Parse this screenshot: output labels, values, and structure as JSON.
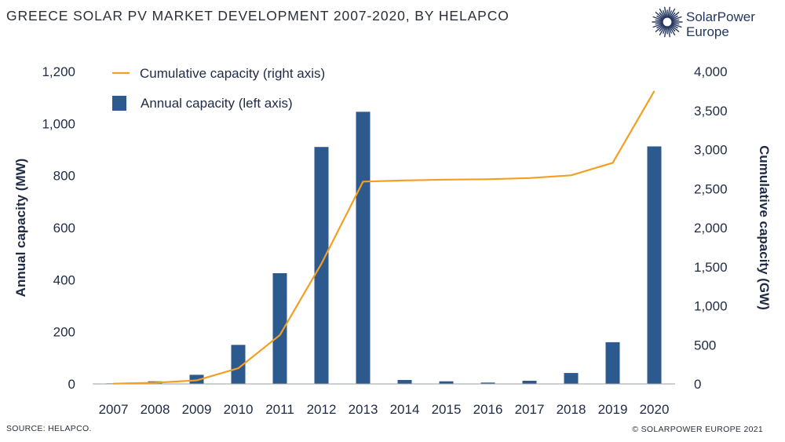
{
  "header": {
    "title": "GREECE SOLAR PV MARKET DEVELOPMENT 2007-2020, BY HELAPCO",
    "logo_line1": "SolarPower",
    "logo_line2": "Europe"
  },
  "footer": {
    "source": "SOURCE: HELAPCO.",
    "copyright": "© SOLARPOWER EUROPE 2021"
  },
  "colors": {
    "bar": "#2d5a8e",
    "line": "#f29f24",
    "axis": "#9aa0a6",
    "logo": "#24365f"
  },
  "chart_data": {
    "type": "bar",
    "categories": [
      "2007",
      "2008",
      "2009",
      "2010",
      "2011",
      "2012",
      "2013",
      "2014",
      "2015",
      "2016",
      "2017",
      "2018",
      "2019",
      "2020"
    ],
    "series": [
      {
        "name": "Annual capacity (left axis)",
        "type": "bar",
        "axis": "left",
        "values": [
          2,
          10,
          35,
          150,
          425,
          910,
          1045,
          15,
          10,
          5,
          12,
          42,
          160,
          912
        ]
      },
      {
        "name": "Cumulative capacity (right axis)",
        "type": "line",
        "axis": "right",
        "values": [
          3,
          15,
          45,
          200,
          625,
          1540,
          2590,
          2605,
          2615,
          2620,
          2635,
          2670,
          2830,
          3750
        ]
      }
    ],
    "ylabel_left": "Annual capacity (MW)",
    "ylabel_right": "Cumulative capacity (GW)",
    "ylim_left": [
      0,
      1200
    ],
    "ylim_right": [
      0,
      4000
    ],
    "yticks_left": [
      "0",
      "200",
      "400",
      "600",
      "800",
      "1,000",
      "1,200"
    ],
    "yticks_right": [
      "0",
      "500",
      "1,000",
      "1,500",
      "2,000",
      "2,500",
      "3,000",
      "3,500",
      "4,000"
    ],
    "grid": false,
    "legend_position": "top-left"
  }
}
